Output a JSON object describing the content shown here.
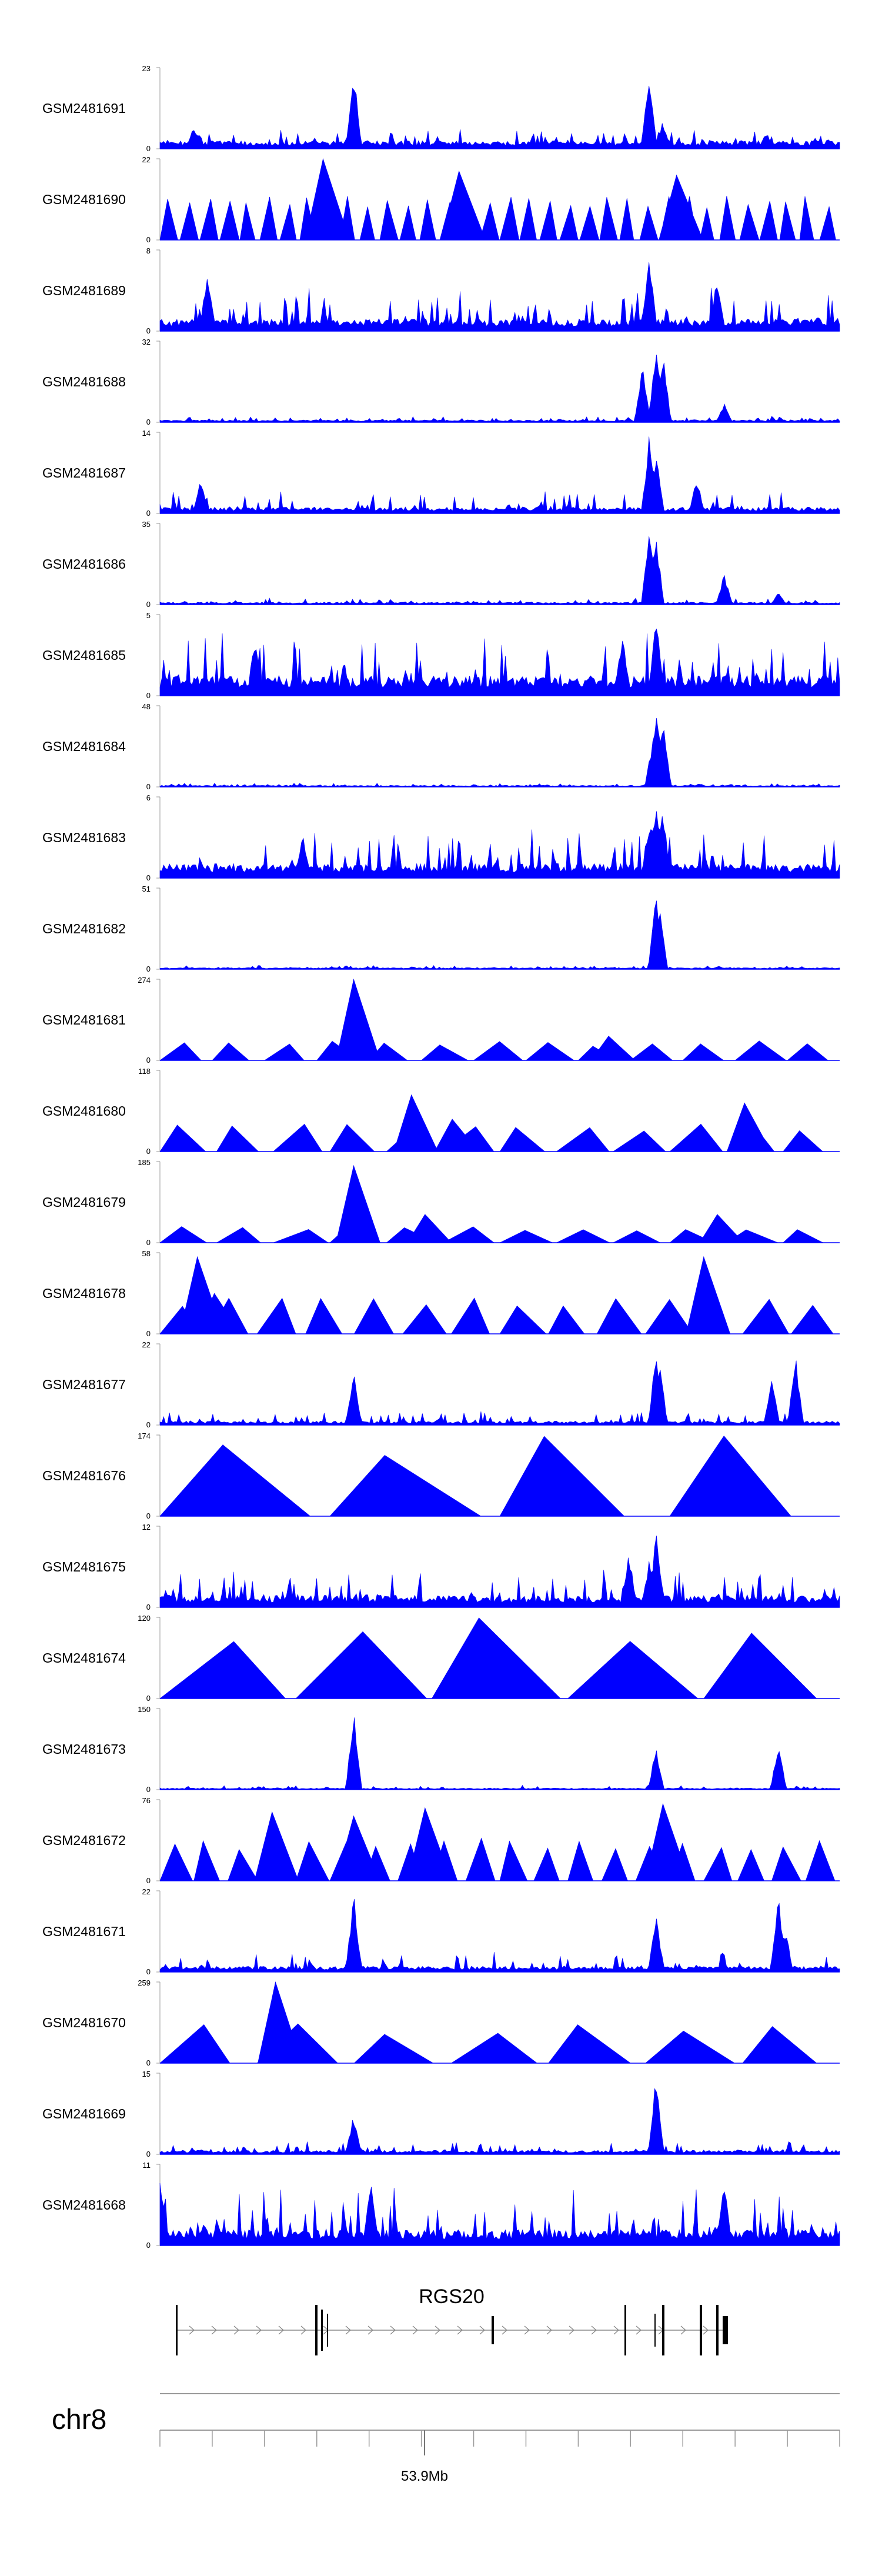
{
  "chart_data": {
    "type": "area",
    "title": "",
    "chromosome": "chr8",
    "gene": {
      "name": "RGS20",
      "strand": "+"
    },
    "x_axis": {
      "tick_label": "53.9Mb",
      "minor_tick_count": 13
    },
    "series_color": "#0000ff",
    "tracks": [
      {
        "name": "GSM2481691",
        "ymin": 0,
        "ymax": 23,
        "style": "dense",
        "base": 0.1,
        "noise": 0.15,
        "peaks": [
          [
            0.05,
            0.3
          ],
          [
            0.285,
            1.0
          ],
          [
            0.72,
            1.0
          ],
          [
            0.74,
            0.35
          ]
        ]
      },
      {
        "name": "GSM2481690",
        "ymin": 0,
        "ymax": 22,
        "style": "triangles",
        "count": 34,
        "height": 0.55,
        "peaks": [
          [
            0.24,
            1.0
          ],
          [
            0.44,
            0.85
          ],
          [
            0.76,
            0.8
          ]
        ]
      },
      {
        "name": "GSM2481689",
        "ymin": 0,
        "ymax": 8,
        "style": "dense",
        "base": 0.15,
        "noise": 0.45,
        "peaks": [
          [
            0.07,
            0.8
          ],
          [
            0.72,
            1.0
          ],
          [
            0.82,
            0.7
          ]
        ]
      },
      {
        "name": "GSM2481688",
        "ymin": 0,
        "ymax": 32,
        "style": "dense",
        "base": 0.03,
        "noise": 0.05,
        "peaks": [
          [
            0.73,
            1.0
          ],
          [
            0.74,
            0.9
          ],
          [
            0.71,
            0.7
          ],
          [
            0.83,
            0.25
          ]
        ]
      },
      {
        "name": "GSM2481687",
        "ymin": 0,
        "ymax": 14,
        "style": "dense",
        "base": 0.08,
        "noise": 0.2,
        "peaks": [
          [
            0.72,
            1.0
          ],
          [
            0.73,
            0.8
          ],
          [
            0.06,
            0.45
          ],
          [
            0.79,
            0.45
          ]
        ]
      },
      {
        "name": "GSM2481686",
        "ymin": 0,
        "ymax": 35,
        "style": "dense",
        "base": 0.03,
        "noise": 0.06,
        "peaks": [
          [
            0.72,
            1.0
          ],
          [
            0.73,
            0.85
          ],
          [
            0.83,
            0.4
          ],
          [
            0.91,
            0.15
          ]
        ]
      },
      {
        "name": "GSM2481685",
        "ymin": 0,
        "ymax": 5,
        "style": "dense",
        "base": 0.25,
        "noise": 0.55,
        "peaks": [
          [
            0.73,
            1.0
          ],
          [
            0.14,
            0.8
          ],
          [
            0.68,
            0.8
          ]
        ]
      },
      {
        "name": "GSM2481684",
        "ymin": 0,
        "ymax": 48,
        "style": "dense",
        "base": 0.02,
        "noise": 0.03,
        "peaks": [
          [
            0.73,
            1.0
          ],
          [
            0.74,
            0.85
          ],
          [
            0.725,
            0.6
          ]
        ]
      },
      {
        "name": "GSM2481683",
        "ymin": 0,
        "ymax": 6,
        "style": "dense",
        "base": 0.18,
        "noise": 0.45,
        "peaks": [
          [
            0.73,
            1.0
          ],
          [
            0.74,
            0.9
          ],
          [
            0.72,
            0.75
          ],
          [
            0.21,
            0.6
          ]
        ]
      },
      {
        "name": "GSM2481682",
        "ymin": 0,
        "ymax": 51,
        "style": "dense",
        "base": 0.02,
        "noise": 0.03,
        "peaks": [
          [
            0.73,
            1.0
          ],
          [
            0.735,
            0.8
          ]
        ]
      },
      {
        "name": "GSM2481681",
        "ymin": 0,
        "ymax": 274,
        "style": "triangles",
        "count": 13,
        "height": 0.25,
        "peaks": [
          [
            0.285,
            1.0
          ],
          [
            0.66,
            0.3
          ]
        ]
      },
      {
        "name": "GSM2481680",
        "ymin": 0,
        "ymax": 118,
        "style": "triangles",
        "count": 12,
        "height": 0.35,
        "peaks": [
          [
            0.37,
            0.7
          ],
          [
            0.86,
            0.6
          ],
          [
            0.43,
            0.4
          ]
        ]
      },
      {
        "name": "GSM2481679",
        "ymin": 0,
        "ymax": 185,
        "style": "triangles",
        "count": 12,
        "height": 0.2,
        "peaks": [
          [
            0.285,
            0.95
          ],
          [
            0.39,
            0.35
          ],
          [
            0.82,
            0.35
          ]
        ]
      },
      {
        "name": "GSM2481678",
        "ymin": 0,
        "ymax": 58,
        "style": "triangles",
        "count": 14,
        "height": 0.45,
        "peaks": [
          [
            0.055,
            0.95
          ],
          [
            0.08,
            0.5
          ],
          [
            0.8,
            0.95
          ]
        ]
      },
      {
        "name": "GSM2481677",
        "ymin": 0,
        "ymax": 22,
        "style": "dense",
        "base": 0.05,
        "noise": 0.12,
        "peaks": [
          [
            0.285,
            0.7
          ],
          [
            0.73,
            0.95
          ],
          [
            0.735,
            0.85
          ],
          [
            0.9,
            0.65
          ],
          [
            0.935,
            0.9
          ]
        ]
      },
      {
        "name": "GSM2481676",
        "ymin": 0,
        "ymax": 174,
        "style": "triangles",
        "count": 4,
        "height": 1.0,
        "peaks": []
      },
      {
        "name": "GSM2481675",
        "ymin": 0,
        "ymax": 12,
        "style": "dense",
        "base": 0.15,
        "noise": 0.35,
        "peaks": [
          [
            0.73,
            1.0
          ],
          [
            0.72,
            0.6
          ],
          [
            0.69,
            0.7
          ]
        ]
      },
      {
        "name": "GSM2481674",
        "ymin": 0,
        "ymax": 120,
        "style": "triangles",
        "count": 5,
        "height": 1.0,
        "peaks": []
      },
      {
        "name": "GSM2481673",
        "ymin": 0,
        "ymax": 150,
        "style": "dense",
        "base": 0.02,
        "noise": 0.04,
        "peaks": [
          [
            0.285,
            1.0
          ],
          [
            0.73,
            0.55
          ],
          [
            0.91,
            0.6
          ]
        ]
      },
      {
        "name": "GSM2481672",
        "ymin": 0,
        "ymax": 76,
        "style": "triangles",
        "count": 20,
        "height": 0.55,
        "peaks": [
          [
            0.165,
            0.85
          ],
          [
            0.285,
            0.8
          ],
          [
            0.39,
            0.9
          ],
          [
            0.74,
            0.95
          ]
        ]
      },
      {
        "name": "GSM2481671",
        "ymin": 0,
        "ymax": 22,
        "style": "dense",
        "base": 0.07,
        "noise": 0.18,
        "peaks": [
          [
            0.285,
            1.0
          ],
          [
            0.73,
            0.75
          ],
          [
            0.91,
            1.0
          ],
          [
            0.92,
            0.55
          ]
        ]
      },
      {
        "name": "GSM2481670",
        "ymin": 0,
        "ymax": 259,
        "style": "triangles",
        "count": 7,
        "height": 0.5,
        "peaks": [
          [
            0.17,
            1.0
          ]
        ]
      },
      {
        "name": "GSM2481669",
        "ymin": 0,
        "ymax": 15,
        "style": "dense",
        "base": 0.05,
        "noise": 0.12,
        "peaks": [
          [
            0.73,
            1.0
          ],
          [
            0.285,
            0.5
          ]
        ]
      },
      {
        "name": "GSM2481668",
        "ymin": 0,
        "ymax": 11,
        "style": "dense",
        "base": 0.2,
        "noise": 0.55,
        "peaks": [
          [
            0.0,
            0.95
          ],
          [
            0.31,
            0.8
          ],
          [
            0.83,
            0.8
          ]
        ]
      }
    ]
  }
}
